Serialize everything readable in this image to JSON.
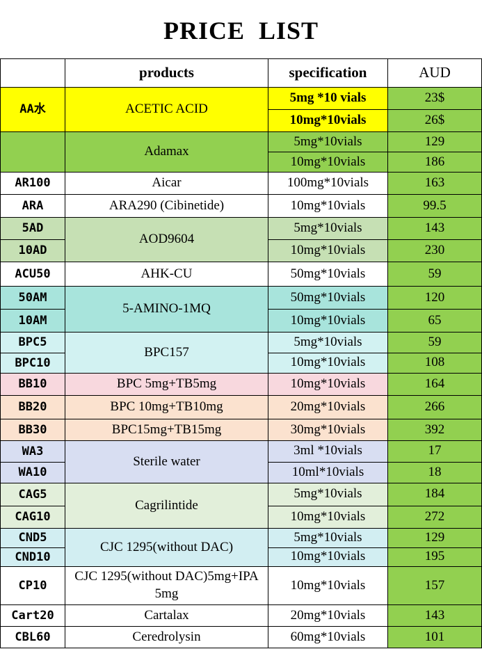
{
  "header": {
    "title": "PRICE  LIST"
  },
  "table": {
    "columns": [
      "products",
      "specification",
      "AUD"
    ],
    "groups": [
      {
        "codes": [
          "AA水"
        ],
        "product": "ACETIC  ACID",
        "specs": [
          "5mg *10 vials",
          "10mg*10vials"
        ],
        "prices": [
          "23$",
          "26$"
        ]
      },
      {
        "codes": [],
        "product": "Adamax",
        "specs": [
          "5mg*10vials",
          "10mg*10vials"
        ],
        "prices": [
          129,
          186
        ]
      },
      {
        "codes": [
          "AR100"
        ],
        "product": "Aicar",
        "specs": [
          "100mg*10vials"
        ],
        "prices": [
          163
        ]
      },
      {
        "codes": [
          "ARA"
        ],
        "product": "ARA290 (Cibinetide)",
        "specs": [
          "10mg*10vials"
        ],
        "prices": [
          99.5
        ]
      },
      {
        "codes": [
          "5AD",
          "10AD"
        ],
        "product": "AOD9604",
        "specs": [
          "5mg*10vials",
          "10mg*10vials"
        ],
        "prices": [
          143,
          230
        ]
      },
      {
        "codes": [
          "ACU50"
        ],
        "product": "AHK-CU",
        "specs": [
          "50mg*10vials"
        ],
        "prices": [
          59
        ]
      },
      {
        "codes": [
          "50AM",
          "10AM"
        ],
        "product": "5-AMINO-1MQ",
        "specs": [
          "50mg*10vials",
          "10mg*10vials"
        ],
        "prices": [
          120,
          65
        ]
      },
      {
        "codes": [
          "BPC5",
          "BPC10"
        ],
        "product": "BPC157",
        "specs": [
          "5mg*10vials",
          "10mg*10vials"
        ],
        "prices": [
          59,
          108
        ]
      },
      {
        "codes": [
          "BB10"
        ],
        "product": "BPC 5mg+TB5mg",
        "specs": [
          "10mg*10vials"
        ],
        "prices": [
          164
        ]
      },
      {
        "codes": [
          "BB20"
        ],
        "product": "BPC 10mg+TB10mg",
        "specs": [
          "20mg*10vials"
        ],
        "prices": [
          266
        ]
      },
      {
        "codes": [
          "BB30"
        ],
        "product": "BPC15mg+TB15mg",
        "specs": [
          "30mg*10vials"
        ],
        "prices": [
          392
        ]
      },
      {
        "codes": [
          "WA3",
          "WA10"
        ],
        "product": "Sterile  water",
        "specs": [
          "3ml *10vials",
          "10ml*10vials"
        ],
        "prices": [
          17,
          18
        ]
      },
      {
        "codes": [
          "CAG5",
          "CAG10"
        ],
        "product": "Cagrilintide",
        "specs": [
          "5mg*10vials",
          "10mg*10vials"
        ],
        "prices": [
          184,
          272
        ]
      },
      {
        "codes": [
          "CND5",
          "CND10"
        ],
        "product": "CJC 1295(without DAC)",
        "specs": [
          "5mg*10vials",
          "10mg*10vials"
        ],
        "prices": [
          129,
          195
        ]
      },
      {
        "codes": [
          "CP10"
        ],
        "product": "CJC 1295(without DAC)5mg+IPA 5mg",
        "specs": [
          "10mg*10vials"
        ],
        "prices": [
          157
        ]
      },
      {
        "codes": [
          "Cart20"
        ],
        "product": "Cartalax",
        "specs": [
          "20mg*10vials"
        ],
        "prices": [
          143
        ]
      },
      {
        "codes": [
          "CBL60"
        ],
        "product": "Ceredrolysin",
        "specs": [
          "60mg*10vials"
        ],
        "prices": [
          101
        ]
      }
    ]
  }
}
